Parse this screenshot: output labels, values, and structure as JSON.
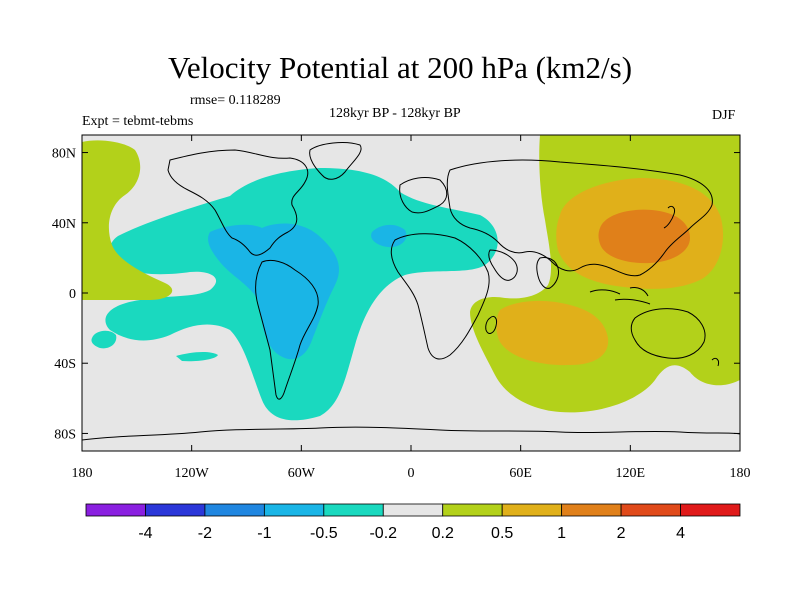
{
  "title": "Velocity Potential at 200 hPa (km2/s)",
  "rmse_label": "rmse= 0.118289",
  "experiment_label": "Expt = tebmt-tebms",
  "period_label": "128kyr BP - 128kyr BP",
  "season_label": "DJF",
  "map": {
    "projection": "cylindrical equidistant",
    "lon_range": [
      -180,
      180
    ],
    "lat_range": [
      -90,
      90
    ],
    "x_tick_labels": [
      "180",
      "120W",
      "60W",
      "0",
      "60E",
      "120E",
      "180"
    ],
    "y_tick_labels": [
      "80N",
      "40N",
      "0",
      "40S",
      "80S"
    ]
  },
  "colorbar": {
    "labels": [
      "-4",
      "-2",
      "-1",
      "-0.5",
      "-0.2",
      "0.2",
      "0.5",
      "1",
      "2",
      "4"
    ],
    "colors": [
      "#8a1fe0",
      "#2b37d9",
      "#1f86e0",
      "#1ab5e6",
      "#1ad9bf",
      "#e6e6e6",
      "#b3d11a",
      "#e0b01a",
      "#e0801a",
      "#e04a1a",
      "#e01a1a"
    ]
  },
  "colors": {
    "background_field": "#e6e6e6",
    "coastline": "#000000"
  }
}
